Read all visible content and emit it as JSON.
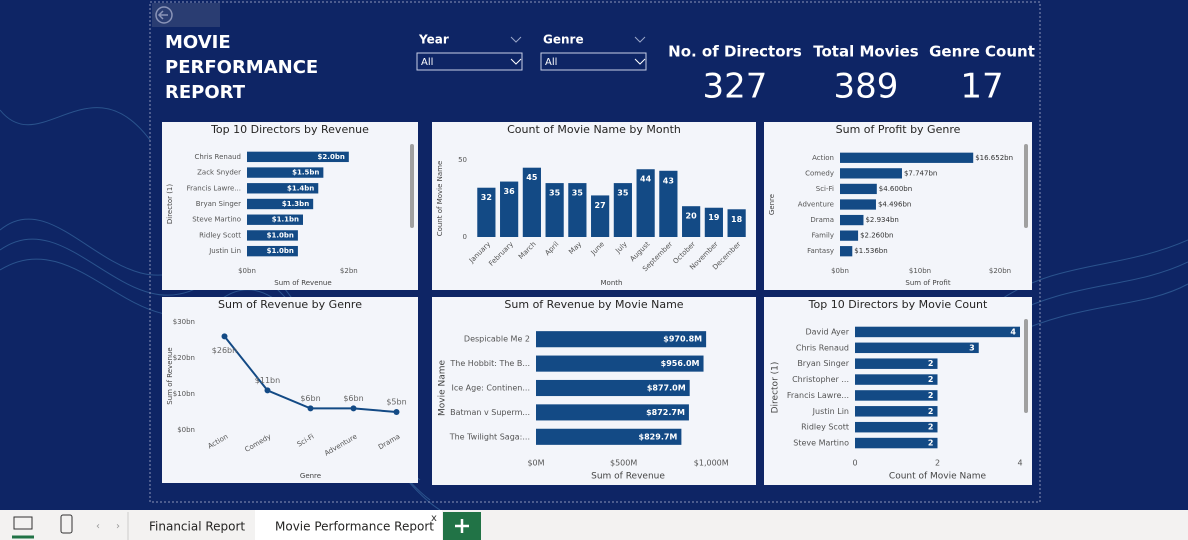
{
  "header": {
    "title": "MOVIE PERFORMANCE REPORT"
  },
  "filters": [
    {
      "label": "Year",
      "value": "All"
    },
    {
      "label": "Genre",
      "value": "All"
    }
  ],
  "kpis": [
    {
      "label": "No. of Directors",
      "value": 327
    },
    {
      "label": "Total Movies",
      "value": 389
    },
    {
      "label": "Genre Count",
      "value": 17
    }
  ],
  "chart_data": [
    {
      "type": "hbar",
      "title": "Top 10 Directors by Revenue",
      "color": "#134a85",
      "categories": [
        "Chris Renaud",
        "Zack Snyder",
        "Francis Lawre...",
        "Bryan Singer",
        "Steve Martino",
        "Ridley Scott",
        "Justin Lin"
      ],
      "values": [
        2.0,
        1.5,
        1.4,
        1.3,
        1.1,
        1.0,
        1.0
      ],
      "value_labels": [
        "$2.0bn",
        "$1.5bn",
        "$1.4bn",
        "$1.3bn",
        "$1.1bn",
        "$1.0bn",
        "$1.0bn"
      ],
      "xlim": [
        0,
        2.2
      ],
      "xticks": [
        {
          "value": 0,
          "label": "$0bn"
        },
        {
          "value": 2,
          "label": "$2bn"
        }
      ],
      "x_label": "Sum of Revenue",
      "y_label": "Director (1)"
    },
    {
      "type": "bar",
      "title": "Count of Movie Name by Month",
      "color": "#134a85",
      "categories": [
        "January",
        "February",
        "March",
        "April",
        "May",
        "June",
        "July",
        "August",
        "September",
        "October",
        "November",
        "December"
      ],
      "values": [
        32,
        36,
        45,
        35,
        35,
        27,
        35,
        44,
        43,
        20,
        19,
        18
      ],
      "ylim": [
        0,
        50
      ],
      "yticks": [
        0,
        50
      ],
      "x_label": "Month",
      "y_label": "Count of Movie Name"
    },
    {
      "type": "hbar",
      "title": "Sum of Profit by Genre",
      "color": "#134a85",
      "categories": [
        "Action",
        "Comedy",
        "Sci-Fi",
        "Adventure",
        "Drama",
        "Family",
        "Fantasy"
      ],
      "values": [
        16.652,
        7.747,
        4.6,
        4.496,
        2.934,
        2.26,
        1.536
      ],
      "value_labels": [
        "$16.652bn",
        "$7.747bn",
        "$4.600bn",
        "$4.496bn",
        "$2.934bn",
        "$2.260bn",
        "$1.536bn"
      ],
      "xlim": [
        0,
        22
      ],
      "xticks": [
        {
          "value": 0,
          "label": "$0bn"
        },
        {
          "value": 10,
          "label": "$10bn"
        },
        {
          "value": 20,
          "label": "$20bn"
        }
      ],
      "x_label": "Sum of Profit",
      "y_label": "Genre"
    },
    {
      "type": "line",
      "title": "Sum of Revenue by Genre",
      "color": "#134a85",
      "categories": [
        "Action",
        "Comedy",
        "Sci-Fi",
        "Adventure",
        "Drama"
      ],
      "values": [
        26,
        11,
        6,
        6,
        5
      ],
      "value_labels": [
        "$26bn",
        "$11bn",
        "$6bn",
        "$6bn",
        "$5bn"
      ],
      "ylim": [
        0,
        30
      ],
      "yticks": [
        {
          "value": 0,
          "label": "$0bn"
        },
        {
          "value": 10,
          "label": "$10bn"
        },
        {
          "value": 20,
          "label": "$20bn"
        },
        {
          "value": 30,
          "label": "$30bn"
        }
      ],
      "x_label": "Genre",
      "y_label": "Sum of Revenue"
    },
    {
      "type": "hbar",
      "title": "Sum of Revenue by Movie Name",
      "color": "#134a85",
      "categories": [
        "Despicable Me 2",
        "The Hobbit: The B...",
        "Ice Age: Continen...",
        "Batman v Superm...",
        "The Twilight Saga:..."
      ],
      "values": [
        970.8,
        956.0,
        877.0,
        872.7,
        829.7
      ],
      "value_labels": [
        "$970.8M",
        "$956.0M",
        "$877.0M",
        "$872.7M",
        "$829.7M"
      ],
      "xlim": [
        0,
        1050
      ],
      "xticks": [
        {
          "value": 0,
          "label": "$0M"
        },
        {
          "value": 500,
          "label": "$500M"
        },
        {
          "value": 1000,
          "label": "$1,000M"
        }
      ],
      "x_label": "Sum of Revenue",
      "y_label": "Movie Name"
    },
    {
      "type": "hbar",
      "title": "Top 10 Directors by Movie Count",
      "color": "#134a85",
      "categories": [
        "David Ayer",
        "Chris Renaud",
        "Bryan Singer",
        "Christopher ...",
        "Francis Lawre...",
        "Justin Lin",
        "Ridley Scott",
        "Steve Martino"
      ],
      "values": [
        4,
        3,
        2,
        2,
        2,
        2,
        2,
        2
      ],
      "xlim": [
        0,
        4
      ],
      "xticks": [
        0,
        2,
        4
      ],
      "x_label": "Count of Movie Name",
      "y_label": "Director (1)"
    }
  ],
  "tabs": [
    "Financial Report",
    "Movie Performance Report"
  ]
}
